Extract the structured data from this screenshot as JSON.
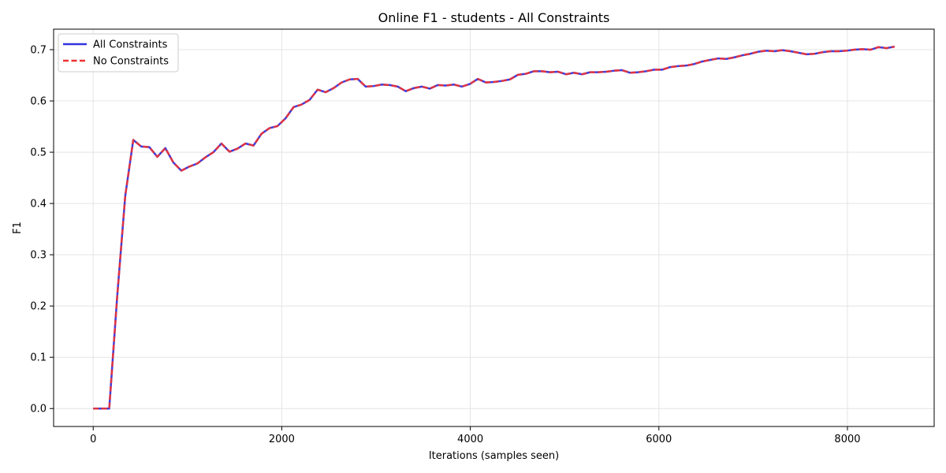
{
  "chart_data": {
    "type": "line",
    "title": "Online F1 - students - All Constraints",
    "xlabel": "Iterations (samples seen)",
    "ylabel": "F1",
    "xlim": [
      -420,
      8920
    ],
    "ylim": [
      -0.035,
      0.74
    ],
    "xticks": [
      0,
      2000,
      4000,
      6000,
      8000
    ],
    "xtick_labels": [
      "0",
      "2000",
      "4000",
      "6000",
      "8000"
    ],
    "yticks": [
      0.0,
      0.1,
      0.2,
      0.3,
      0.4,
      0.5,
      0.6,
      0.7
    ],
    "ytick_labels": [
      "0.0",
      "0.1",
      "0.2",
      "0.3",
      "0.4",
      "0.5",
      "0.6",
      "0.7"
    ],
    "grid": true,
    "legend_position": "top-left",
    "x": [
      0,
      85,
      170,
      255,
      340,
      425,
      510,
      595,
      680,
      765,
      850,
      935,
      1020,
      1105,
      1190,
      1275,
      1360,
      1445,
      1530,
      1615,
      1700,
      1785,
      1870,
      1955,
      2040,
      2125,
      2210,
      2295,
      2380,
      2465,
      2550,
      2635,
      2720,
      2805,
      2890,
      2975,
      3060,
      3145,
      3230,
      3315,
      3400,
      3485,
      3570,
      3655,
      3740,
      3825,
      3910,
      3995,
      4080,
      4165,
      4250,
      4335,
      4420,
      4505,
      4590,
      4675,
      4760,
      4845,
      4930,
      5015,
      5100,
      5185,
      5270,
      5355,
      5440,
      5525,
      5610,
      5695,
      5780,
      5865,
      5950,
      6035,
      6120,
      6205,
      6290,
      6375,
      6460,
      6545,
      6630,
      6715,
      6800,
      6885,
      6970,
      7055,
      7140,
      7225,
      7310,
      7395,
      7480,
      7565,
      7650,
      7735,
      7820,
      7905,
      7990,
      8075,
      8160,
      8245,
      8330,
      8415,
      8500
    ],
    "series": [
      {
        "name": "All Constraints",
        "color": "#3333dd",
        "style": "solid",
        "values": [
          0.0,
          0.0,
          0.0,
          0.22,
          0.415,
          0.524,
          0.511,
          0.51,
          0.491,
          0.508,
          0.48,
          0.464,
          0.472,
          0.478,
          0.49,
          0.5,
          0.517,
          0.501,
          0.507,
          0.517,
          0.513,
          0.536,
          0.547,
          0.551,
          0.566,
          0.588,
          0.593,
          0.602,
          0.622,
          0.617,
          0.625,
          0.636,
          0.642,
          0.643,
          0.628,
          0.629,
          0.632,
          0.631,
          0.628,
          0.619,
          0.625,
          0.628,
          0.624,
          0.631,
          0.63,
          0.632,
          0.628,
          0.633,
          0.643,
          0.636,
          0.637,
          0.639,
          0.642,
          0.651,
          0.653,
          0.658,
          0.658,
          0.656,
          0.657,
          0.652,
          0.655,
          0.652,
          0.656,
          0.656,
          0.657,
          0.659,
          0.66,
          0.655,
          0.656,
          0.658,
          0.661,
          0.661,
          0.666,
          0.668,
          0.669,
          0.672,
          0.677,
          0.68,
          0.683,
          0.682,
          0.685,
          0.689,
          0.692,
          0.696,
          0.698,
          0.697,
          0.699,
          0.697,
          0.694,
          0.691,
          0.692,
          0.695,
          0.697,
          0.697,
          0.698,
          0.7,
          0.701,
          0.7,
          0.705,
          0.703,
          0.706
        ]
      },
      {
        "name": "No Constraints",
        "color": "#ee3333",
        "style": "dashed",
        "values": [
          0.0,
          0.0,
          0.0,
          0.22,
          0.415,
          0.524,
          0.511,
          0.51,
          0.491,
          0.508,
          0.48,
          0.464,
          0.472,
          0.478,
          0.49,
          0.5,
          0.517,
          0.501,
          0.507,
          0.517,
          0.513,
          0.536,
          0.547,
          0.551,
          0.566,
          0.588,
          0.593,
          0.602,
          0.622,
          0.617,
          0.625,
          0.636,
          0.642,
          0.643,
          0.628,
          0.629,
          0.632,
          0.631,
          0.628,
          0.619,
          0.625,
          0.628,
          0.624,
          0.631,
          0.63,
          0.632,
          0.628,
          0.633,
          0.643,
          0.636,
          0.637,
          0.639,
          0.642,
          0.651,
          0.653,
          0.658,
          0.658,
          0.656,
          0.657,
          0.652,
          0.655,
          0.652,
          0.656,
          0.656,
          0.657,
          0.659,
          0.66,
          0.655,
          0.656,
          0.658,
          0.661,
          0.661,
          0.666,
          0.668,
          0.669,
          0.672,
          0.677,
          0.68,
          0.683,
          0.682,
          0.685,
          0.689,
          0.692,
          0.696,
          0.698,
          0.697,
          0.699,
          0.697,
          0.694,
          0.691,
          0.692,
          0.695,
          0.697,
          0.697,
          0.698,
          0.7,
          0.701,
          0.7,
          0.705,
          0.703,
          0.706
        ]
      }
    ]
  }
}
